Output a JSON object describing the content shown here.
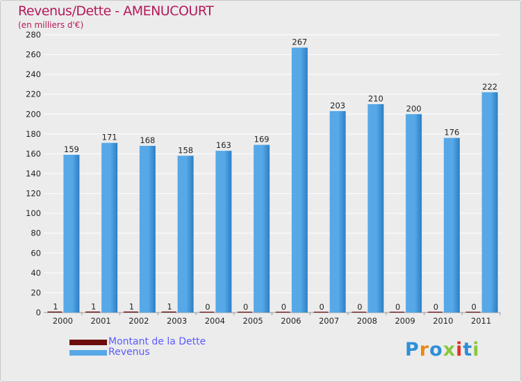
{
  "header": {
    "title": "Revenus/Dette - AMENUCOURT",
    "subtitle": "(en milliers d'€)"
  },
  "logo": {
    "text": "Proxiti"
  },
  "colors": {
    "revenus": "#57a8e6",
    "revenus_dark": "#2b7fc4",
    "dette": "#6b0d0d",
    "grid": "#ffffff",
    "title": "#b4195a",
    "legend_text": "#5a5aff"
  },
  "chart_data": {
    "type": "bar",
    "categories": [
      "2000",
      "2001",
      "2002",
      "2003",
      "2004",
      "2005",
      "2006",
      "2007",
      "2008",
      "2009",
      "2010",
      "2011"
    ],
    "series": [
      {
        "name": "Montant de la Dette",
        "values": [
          1,
          1,
          1,
          1,
          0,
          0,
          0,
          0,
          0,
          0,
          0,
          0
        ]
      },
      {
        "name": "Revenus",
        "values": [
          159,
          171,
          168,
          158,
          163,
          169,
          267,
          203,
          210,
          200,
          176,
          222
        ]
      }
    ],
    "ylim": [
      0,
      280
    ],
    "yticks": [
      0,
      20,
      40,
      60,
      80,
      100,
      120,
      140,
      160,
      180,
      200,
      220,
      240,
      260,
      280
    ],
    "grid": true,
    "legend_position": "bottom-left"
  }
}
